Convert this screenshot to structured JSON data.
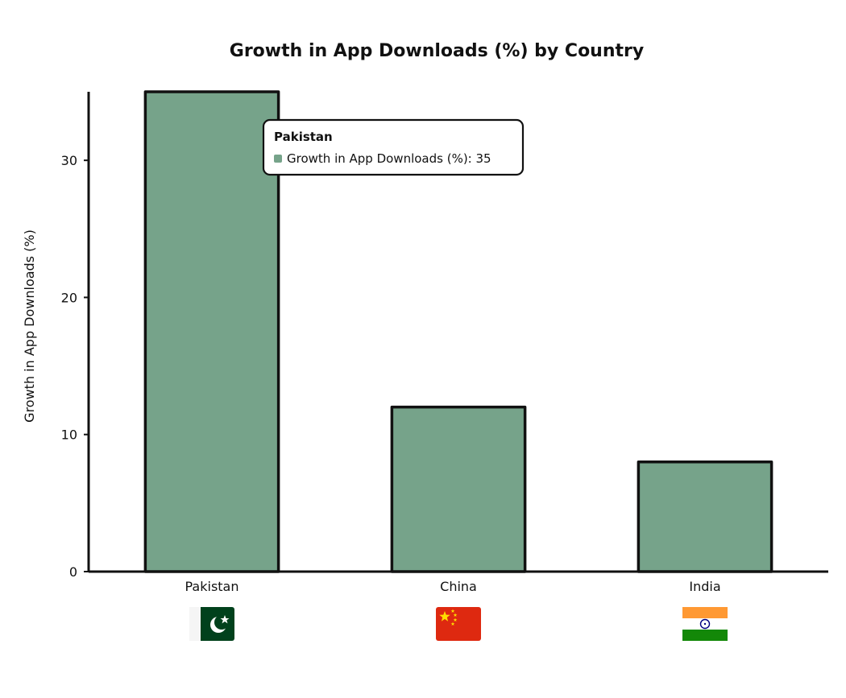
{
  "colors": {
    "bar_fill": "#76a38a",
    "stroke": "#111111",
    "background": "#ffffff"
  },
  "chart_data": {
    "type": "bar",
    "title": "Growth in App Downloads (%) by Country",
    "xlabel": "",
    "ylabel": "Growth in App Downloads (%)",
    "categories": [
      "Pakistan",
      "China",
      "India"
    ],
    "series": [
      {
        "name": "Growth in App Downloads (%)",
        "values": [
          35,
          12,
          8
        ]
      }
    ],
    "ylim": [
      0,
      35
    ],
    "yticks": [
      0,
      10,
      20,
      30
    ],
    "grid": false,
    "legend": "none",
    "category_icons": [
      "flag-pakistan",
      "flag-china",
      "flag-india"
    ]
  },
  "tooltip": {
    "title": "Pakistan",
    "label": "Growth in App Downloads (%): 35"
  }
}
